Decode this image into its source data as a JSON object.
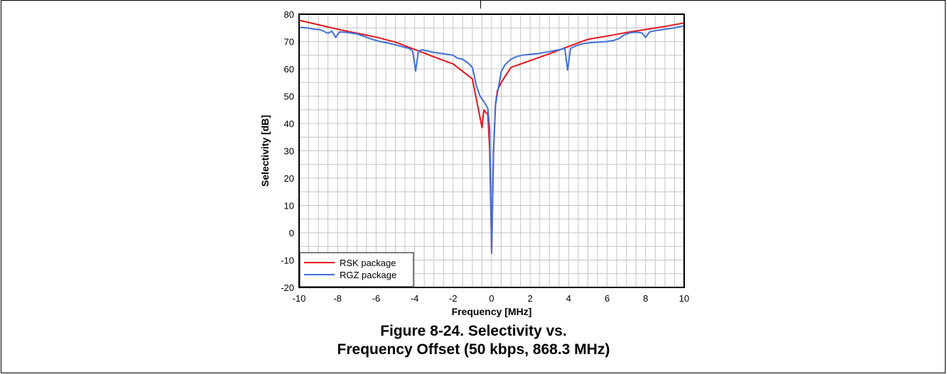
{
  "chart_data": {
    "type": "line",
    "xlabel": "Frequency [MHz]",
    "ylabel": "Selectivity [dB]",
    "xlim": [
      -10,
      10
    ],
    "ylim": [
      -20,
      80
    ],
    "xticks": [
      -10,
      -8,
      -6,
      -4,
      -2,
      0,
      2,
      4,
      6,
      8,
      10
    ],
    "yticks": [
      -20,
      -10,
      0,
      10,
      20,
      30,
      40,
      50,
      60,
      70,
      80
    ],
    "grid": true,
    "legend_position": "bottom-left",
    "series": [
      {
        "name": "RSK package",
        "color": "#e8141c",
        "points": [
          [
            -10,
            77.8
          ],
          [
            -8,
            74.5
          ],
          [
            -6,
            71.6
          ],
          [
            -5,
            69.8
          ],
          [
            -4,
            67.1
          ],
          [
            -3,
            64.4
          ],
          [
            -2,
            61.8
          ],
          [
            -1,
            56.3
          ],
          [
            -0.5,
            38.5
          ],
          [
            -0.4,
            45
          ],
          [
            -0.3,
            44
          ],
          [
            -0.2,
            43.5
          ],
          [
            -0.1,
            30
          ],
          [
            0,
            -7.5
          ],
          [
            0.1,
            30
          ],
          [
            0.2,
            47
          ],
          [
            0.3,
            52
          ],
          [
            0.5,
            55
          ],
          [
            1,
            60.5
          ],
          [
            2,
            63
          ],
          [
            3,
            65.5
          ],
          [
            4,
            68.2
          ],
          [
            5,
            70.8
          ],
          [
            6,
            72
          ],
          [
            7,
            73.3
          ],
          [
            8,
            74.4
          ],
          [
            9,
            75.5
          ],
          [
            10,
            76.8
          ]
        ]
      },
      {
        "name": "RGZ package",
        "color": "#3f6fdc",
        "points": [
          [
            -10,
            75.2
          ],
          [
            -9.6,
            75.0
          ],
          [
            -9.2,
            74.5
          ],
          [
            -8.9,
            74.3
          ],
          [
            -8.5,
            73.0
          ],
          [
            -8.3,
            73.8
          ],
          [
            -8.1,
            71.5
          ],
          [
            -7.9,
            73.5
          ],
          [
            -7.5,
            73.3
          ],
          [
            -7,
            72.8
          ],
          [
            -6.6,
            71.8
          ],
          [
            -6.2,
            70.8
          ],
          [
            -5.8,
            70.0
          ],
          [
            -5.4,
            69.5
          ],
          [
            -5,
            68.8
          ],
          [
            -4.6,
            68.0
          ],
          [
            -4.3,
            67.5
          ],
          [
            -4.1,
            66.5
          ],
          [
            -3.95,
            59.2
          ],
          [
            -3.8,
            66.5
          ],
          [
            -3.6,
            67.0
          ],
          [
            -3.3,
            66.5
          ],
          [
            -3,
            66.0
          ],
          [
            -2.5,
            65.5
          ],
          [
            -2,
            65.0
          ],
          [
            -1.8,
            64.0
          ],
          [
            -1.5,
            63.5
          ],
          [
            -1.2,
            62.0
          ],
          [
            -1.0,
            60.5
          ],
          [
            -0.9,
            57.5
          ],
          [
            -0.8,
            54.0
          ],
          [
            -0.6,
            50.0
          ],
          [
            -0.4,
            48.0
          ],
          [
            -0.2,
            45.5
          ],
          [
            -0.1,
            38
          ],
          [
            0,
            -7.5
          ],
          [
            0.1,
            30
          ],
          [
            0.2,
            46.5
          ],
          [
            0.35,
            53.0
          ],
          [
            0.5,
            59.0
          ],
          [
            0.7,
            61.5
          ],
          [
            1.0,
            63.5
          ],
          [
            1.3,
            64.5
          ],
          [
            1.6,
            65.0
          ],
          [
            2.0,
            65.3
          ],
          [
            2.5,
            65.7
          ],
          [
            3.0,
            66.3
          ],
          [
            3.5,
            67.0
          ],
          [
            3.8,
            67.5
          ],
          [
            3.95,
            59.5
          ],
          [
            4.1,
            67.5
          ],
          [
            4.4,
            68.5
          ],
          [
            4.8,
            69.3
          ],
          [
            5.2,
            69.6
          ],
          [
            5.6,
            69.8
          ],
          [
            6.0,
            70.0
          ],
          [
            6.3,
            70.3
          ],
          [
            6.6,
            71.0
          ],
          [
            6.9,
            72.5
          ],
          [
            7.2,
            73.2
          ],
          [
            7.5,
            73.4
          ],
          [
            7.8,
            73.2
          ],
          [
            8.0,
            71.5
          ],
          [
            8.2,
            73.5
          ],
          [
            8.5,
            74.0
          ],
          [
            9.0,
            74.5
          ],
          [
            9.5,
            75.0
          ],
          [
            10,
            75.8
          ]
        ]
      }
    ]
  },
  "caption": {
    "line1": "Figure 8-24. Selectivity vs.",
    "line2": "Frequency Offset (50 kbps, 868.3 MHz)"
  }
}
